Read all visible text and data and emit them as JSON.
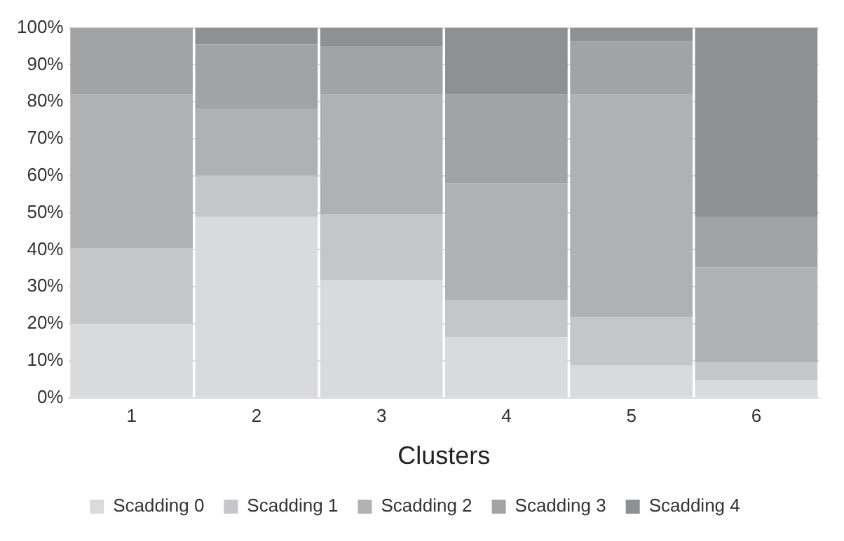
{
  "chart_data": {
    "type": "bar",
    "stacked": true,
    "xlabel": "Clusters",
    "categories": [
      "1",
      "2",
      "3",
      "4",
      "5",
      "6"
    ],
    "series": [
      {
        "name": "Scadding 0",
        "color": "#d9dadc",
        "values": [
          20,
          49,
          31.7,
          16.3,
          8.7,
          4.7
        ]
      },
      {
        "name": "Scadding 1",
        "color": "#c5c6c8",
        "values": [
          20.3,
          11,
          17.8,
          10,
          13.1,
          4.8
        ]
      },
      {
        "name": "Scadding 2",
        "color": "#b0b1b3",
        "values": [
          41.7,
          18,
          32.5,
          31.7,
          60.2,
          25.8
        ]
      },
      {
        "name": "Scadding 3",
        "color": "#a2a3a5",
        "values": [
          18,
          17.5,
          13,
          24,
          14.3,
          13.7
        ]
      },
      {
        "name": "Scadding 4",
        "color": "#8f9092",
        "values": [
          0,
          4.5,
          5,
          18,
          3.7,
          51
        ]
      }
    ],
    "ylim": [
      0,
      100
    ],
    "yticks": [
      {
        "value": 0,
        "label": "0%"
      },
      {
        "value": 10,
        "label": "10%"
      },
      {
        "value": 20,
        "label": "20%"
      },
      {
        "value": 30,
        "label": "30%"
      },
      {
        "value": 40,
        "label": "40%"
      },
      {
        "value": 50,
        "label": "50%"
      },
      {
        "value": 60,
        "label": "60%"
      },
      {
        "value": 70,
        "label": "70%"
      },
      {
        "value": 80,
        "label": "80%"
      },
      {
        "value": 90,
        "label": "90%"
      },
      {
        "value": 100,
        "label": "100%"
      }
    ],
    "grid": "y",
    "legend": "bottom"
  }
}
